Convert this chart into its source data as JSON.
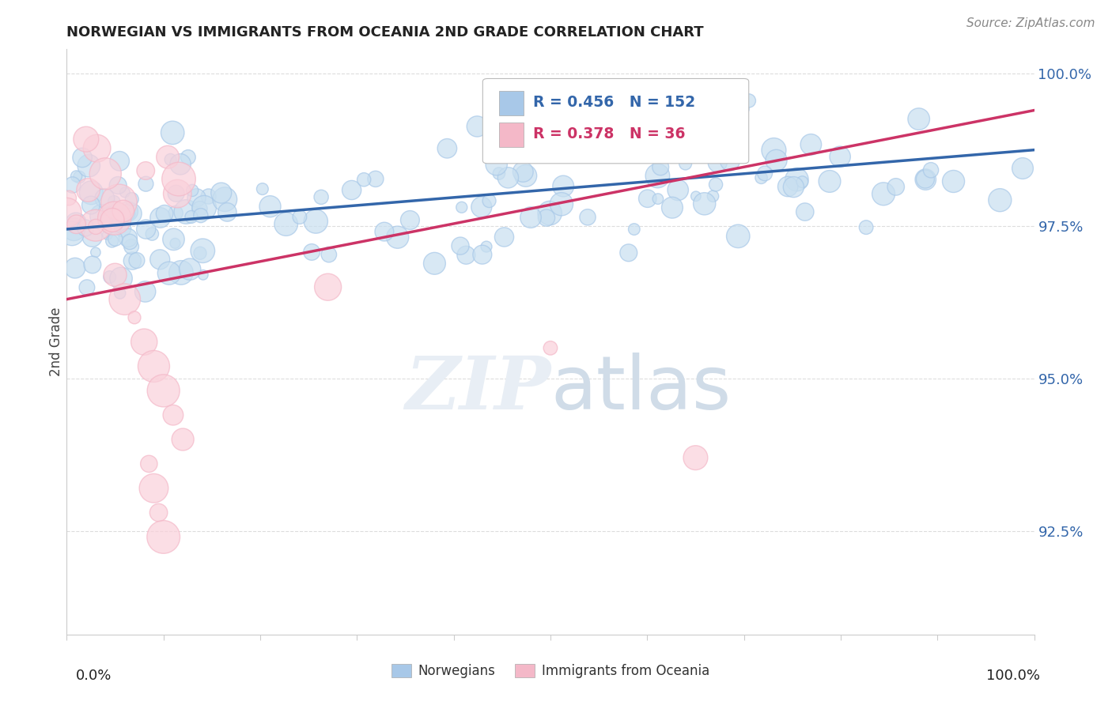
{
  "title": "NORWEGIAN VS IMMIGRANTS FROM OCEANIA 2ND GRADE CORRELATION CHART",
  "source": "Source: ZipAtlas.com",
  "ylabel": "2nd Grade",
  "xlim": [
    0.0,
    1.0
  ],
  "ylim": [
    0.908,
    1.004
  ],
  "yticks": [
    0.925,
    0.95,
    0.975,
    1.0
  ],
  "ytick_labels": [
    "92.5%",
    "95.0%",
    "97.5%",
    "100.0%"
  ],
  "legend_entry1": "R = 0.456   N = 152",
  "legend_entry2": "R = 0.378   N =  36",
  "legend_label1": "Norwegians",
  "legend_label2": "Immigrants from Oceania",
  "blue_color": "#a8c8e8",
  "pink_color": "#f4b8c8",
  "blue_fill_color": "#c8dff0",
  "pink_fill_color": "#fad0da",
  "blue_line_color": "#3366aa",
  "pink_line_color": "#cc3366",
  "legend_text_blue": "#3366aa",
  "legend_text_pink": "#cc3366",
  "blue_seed": 77,
  "pink_seed": 33,
  "blue_n": 152,
  "pink_n": 36,
  "blue_trend_y0": 0.9745,
  "blue_trend_y1": 0.9875,
  "pink_trend_y0": 0.963,
  "pink_trend_y1": 0.994,
  "watermark_color": "#e8eef5",
  "background_color": "#ffffff",
  "grid_color": "#dddddd",
  "spine_color": "#cccccc",
  "right_tick_color": "#3366aa"
}
